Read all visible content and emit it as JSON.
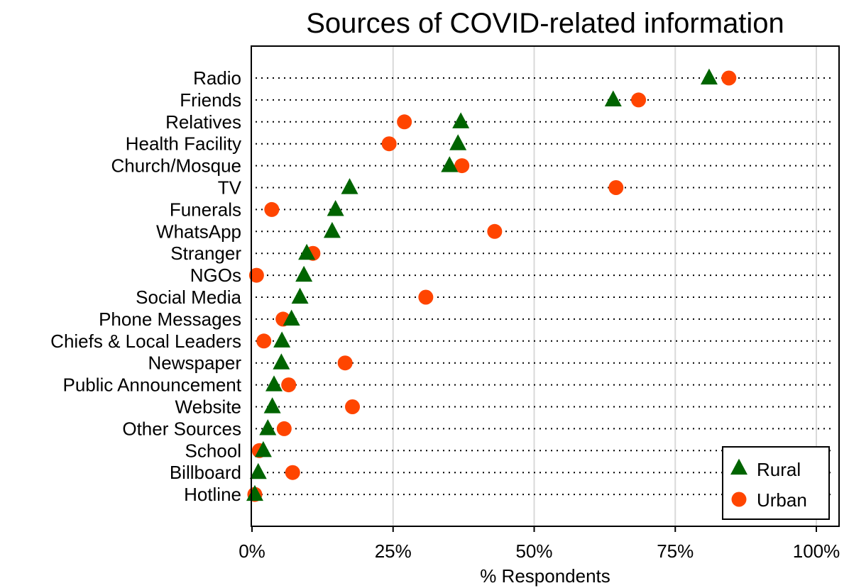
{
  "chart_data": {
    "type": "scatter",
    "title": "Sources of COVID-related information",
    "xlabel": "% Respondents",
    "ylabel": "",
    "xlim": [
      0,
      100
    ],
    "x_ticks": [
      "0%",
      "25%",
      "50%",
      "75%",
      "100%"
    ],
    "x_tick_values": [
      0,
      25,
      50,
      75,
      100
    ],
    "grid": "vertical",
    "legend_position": "bottom-right",
    "categories": [
      "Radio",
      "Friends",
      "Relatives",
      "Health Facility",
      "Church/Mosque",
      "TV",
      "Funerals",
      "WhatsApp",
      "Stranger",
      "NGOs",
      "Social Media",
      "Phone Messages",
      "Chiefs & Local Leaders",
      "Newspaper",
      "Public Announcement",
      "Website",
      "Other Sources",
      "School",
      "Billboard",
      "Hotline"
    ],
    "series": [
      {
        "name": "Rural",
        "marker": "triangle",
        "color": "#006400",
        "values": [
          81,
          64,
          37,
          36.5,
          35,
          17.3,
          14.8,
          14.2,
          9.7,
          9.2,
          8.5,
          7,
          5.3,
          5.2,
          3.9,
          3.6,
          2.8,
          2,
          1.1,
          0.5
        ]
      },
      {
        "name": "Urban",
        "marker": "circle",
        "color": "#ff4500",
        "values": [
          84.5,
          68.5,
          27,
          24.3,
          37.2,
          64.5,
          3.5,
          43,
          10.8,
          0.8,
          30.8,
          5.5,
          2.1,
          16.5,
          6.5,
          17.8,
          5.7,
          1.3,
          7.2,
          0.5
        ]
      }
    ]
  }
}
